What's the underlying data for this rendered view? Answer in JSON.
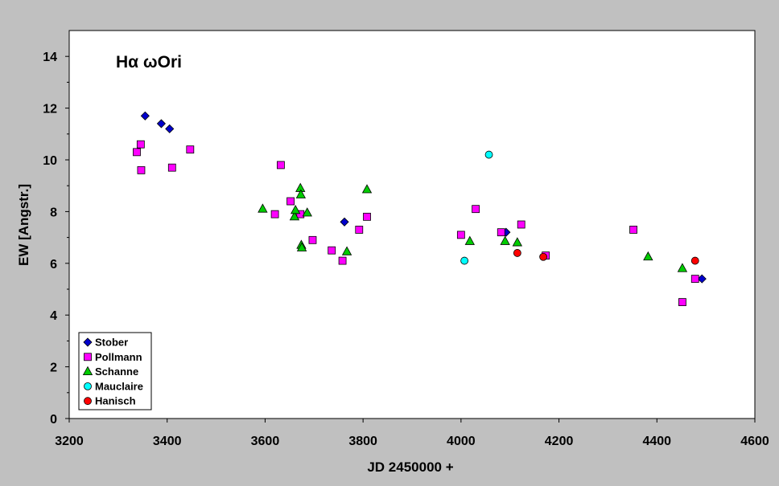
{
  "chart_data": {
    "type": "scatter",
    "title": "Hα ωOri",
    "xlabel": "JD 2450000 +",
    "ylabel": "EW [Angstr.]",
    "xlim": [
      3200,
      4600
    ],
    "ylim": [
      0,
      15
    ],
    "x_ticks": [
      3200,
      3400,
      3600,
      3800,
      4000,
      4200,
      4400,
      4600
    ],
    "y_ticks": [
      0,
      2,
      4,
      6,
      8,
      10,
      12,
      14
    ],
    "grid": false,
    "legend_position": "bottom-left",
    "series": [
      {
        "name": "Stober",
        "marker": "diamond",
        "color": "#0000cc",
        "points": [
          [
            3355,
            11.7
          ],
          [
            3388,
            11.4
          ],
          [
            3405,
            11.2
          ],
          [
            3762,
            7.6
          ],
          [
            4092,
            7.2
          ],
          [
            4492,
            5.4
          ]
        ]
      },
      {
        "name": "Pollmann",
        "marker": "square",
        "color": "#ff00ff",
        "points": [
          [
            3338,
            10.3
          ],
          [
            3346,
            10.6
          ],
          [
            3347,
            9.6
          ],
          [
            3410,
            9.7
          ],
          [
            3447,
            10.4
          ],
          [
            3620,
            7.9
          ],
          [
            3632,
            9.8
          ],
          [
            3652,
            8.4
          ],
          [
            3672,
            7.9
          ],
          [
            3697,
            6.9
          ],
          [
            3736,
            6.5
          ],
          [
            3758,
            6.1
          ],
          [
            3792,
            7.3
          ],
          [
            3808,
            7.8
          ],
          [
            4000,
            7.1
          ],
          [
            4030,
            8.1
          ],
          [
            4082,
            7.2
          ],
          [
            4123,
            7.5
          ],
          [
            4173,
            6.3
          ],
          [
            4352,
            7.3
          ],
          [
            4452,
            4.5
          ],
          [
            4478,
            5.4
          ]
        ]
      },
      {
        "name": "Schanne",
        "marker": "triangle",
        "color": "#00cc00",
        "points": [
          [
            3595,
            8.1
          ],
          [
            3660,
            7.8
          ],
          [
            3662,
            8.05
          ],
          [
            3672,
            8.9
          ],
          [
            3673,
            8.65
          ],
          [
            3674,
            6.7
          ],
          [
            3675,
            6.6
          ],
          [
            3686,
            7.95
          ],
          [
            3767,
            6.45
          ],
          [
            3808,
            8.85
          ],
          [
            4018,
            6.85
          ],
          [
            4090,
            6.85
          ],
          [
            4115,
            6.8
          ],
          [
            4382,
            6.25
          ],
          [
            4452,
            5.8
          ]
        ]
      },
      {
        "name": "Mauclaire",
        "marker": "circle",
        "color": "#00ffff",
        "points": [
          [
            4007,
            6.1
          ],
          [
            4057,
            10.2
          ]
        ]
      },
      {
        "name": "Hanisch",
        "marker": "circle",
        "color": "#ff0000",
        "points": [
          [
            4115,
            6.4
          ],
          [
            4168,
            6.25
          ],
          [
            4478,
            6.1
          ]
        ]
      }
    ]
  },
  "style": {
    "page_background": "#c0c0c0",
    "plot_background": "#ffffff",
    "axis_color": "#000000",
    "marker_stroke": "#000000"
  }
}
